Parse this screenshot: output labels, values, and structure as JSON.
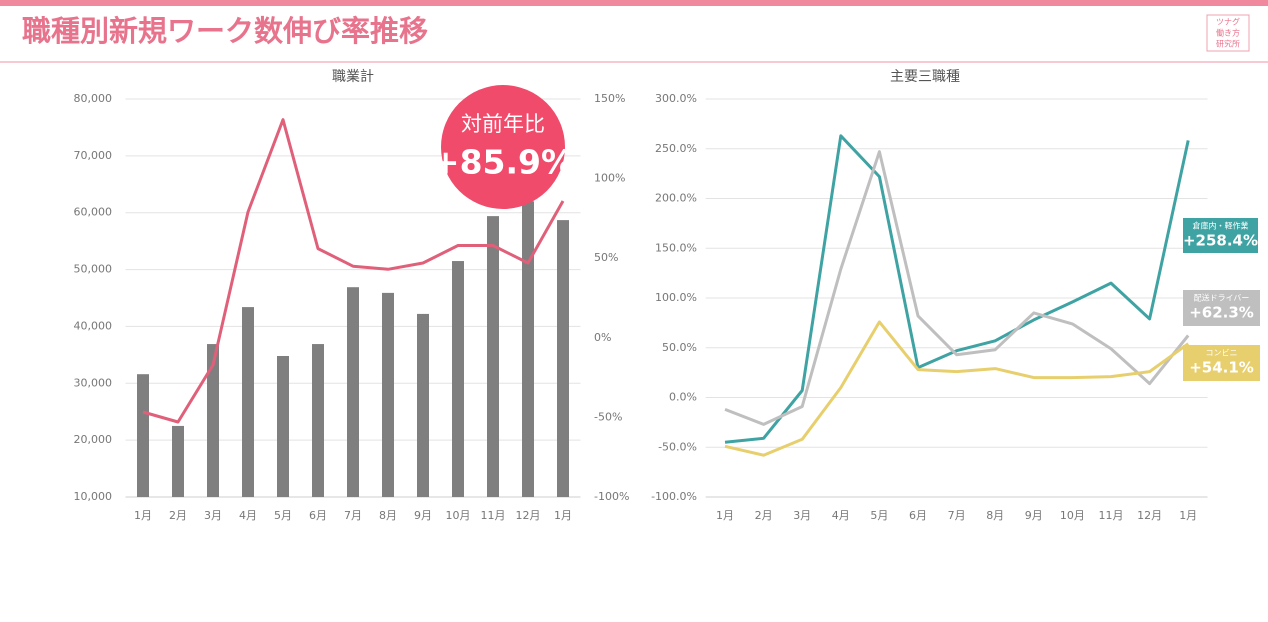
{
  "header": {
    "title": "職種別新規ワーク数伸び率推移",
    "logo": [
      "ツナグ",
      "働き方",
      "研究所"
    ]
  },
  "chart_data": [
    {
      "type": "bar",
      "title": "職業計",
      "categories": [
        "1月",
        "2月",
        "3月",
        "4月",
        "5月",
        "6月",
        "7月",
        "8月",
        "9月",
        "10月",
        "11月",
        "12月",
        "1月"
      ],
      "series": [
        {
          "type": "bar",
          "color": "#7f7f7f",
          "values": [
            31600,
            22500,
            36900,
            43400,
            34800,
            36900,
            46900,
            45900,
            42200,
            51500,
            59400,
            62000,
            58700
          ]
        },
        {
          "type": "line",
          "axis": "y2",
          "color": "#e0607a",
          "values": [
            -46.6,
            -52.9,
            -17,
            79,
            137,
            56,
            45,
            43,
            47,
            58,
            58,
            47,
            85.9
          ],
          "value_labels": [
            null,
            null,
            null,
            null,
            null,
            null,
            null,
            null,
            null,
            null,
            null,
            null,
            "+85.9%"
          ]
        }
      ],
      "annotation": "対前年比",
      "ylim": [
        10000,
        80000
      ],
      "yticks": [
        {
          "value": 10000,
          "label": "10,000"
        },
        {
          "value": 20000,
          "label": "20,000"
        },
        {
          "value": 30000,
          "label": "30,000"
        },
        {
          "value": 40000,
          "label": "40,000"
        },
        {
          "value": 50000,
          "label": "50,000"
        },
        {
          "value": 60000,
          "label": "60,000"
        },
        {
          "value": 70000,
          "label": "70,000"
        },
        {
          "value": 80000,
          "label": "80,000"
        }
      ],
      "y2lim": [
        -100,
        150
      ],
      "y2ticks": [
        {
          "value": -100,
          "label": "-100%"
        },
        {
          "value": -50,
          "label": "-50%"
        },
        {
          "value": 0,
          "label": "0%"
        },
        {
          "value": 50,
          "label": "50%"
        },
        {
          "value": 100,
          "label": "100%"
        },
        {
          "value": 150,
          "label": "150%"
        }
      ],
      "grid": true
    },
    {
      "type": "line",
      "title": "主要三職種",
      "categories": [
        "1月",
        "2月",
        "3月",
        "4月",
        "5月",
        "6月",
        "7月",
        "8月",
        "9月",
        "10月",
        "11月",
        "12月",
        "1月"
      ],
      "series": [
        {
          "name": "倉庫内・軽作業",
          "color": "#3fa3a3",
          "values": [
            -45,
            -41,
            7,
            263,
            222,
            30,
            47,
            57,
            78,
            96,
            115,
            79,
            258.4
          ],
          "value_labels": [
            null,
            null,
            null,
            null,
            null,
            null,
            null,
            null,
            null,
            null,
            null,
            null,
            "+258.4%"
          ]
        },
        {
          "name": "配送ドライバー",
          "color": "#bfbfbf",
          "values": [
            -12,
            -27,
            -9,
            129,
            247,
            82,
            43,
            48,
            85,
            74,
            49,
            14,
            62.3
          ],
          "value_labels": [
            null,
            null,
            null,
            null,
            null,
            null,
            null,
            null,
            null,
            null,
            null,
            null,
            "+62.3%"
          ]
        },
        {
          "name": "コンビニ",
          "color": "#e8cf6e",
          "values": [
            -49,
            -58,
            -42,
            10,
            76,
            28,
            26,
            29,
            20,
            20,
            21,
            26,
            54.1
          ],
          "value_labels": [
            null,
            null,
            null,
            null,
            null,
            null,
            null,
            null,
            null,
            null,
            null,
            null,
            "+54.1%"
          ]
        }
      ],
      "ylim": [
        -100,
        300
      ],
      "yticks": [
        {
          "value": -100,
          "label": "-100.0%"
        },
        {
          "value": -50,
          "label": "-50.0%"
        },
        {
          "value": 0,
          "label": "0.0%"
        },
        {
          "value": 50,
          "label": "50.0%"
        },
        {
          "value": 100,
          "label": "100.0%"
        },
        {
          "value": 150,
          "label": "150.0%"
        },
        {
          "value": 200,
          "label": "200.0%"
        },
        {
          "value": 250,
          "label": "250.0%"
        },
        {
          "value": 300,
          "label": "300.0%"
        }
      ],
      "grid": true
    }
  ]
}
